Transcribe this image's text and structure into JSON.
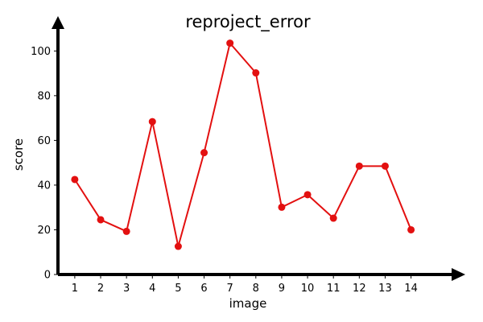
{
  "chart_data": {
    "type": "line",
    "title": "reproject_error",
    "xlabel": "image",
    "ylabel": "score",
    "x": [
      1,
      2,
      3,
      4,
      5,
      6,
      7,
      8,
      9,
      10,
      11,
      12,
      13,
      14
    ],
    "series": [
      {
        "values": [
          42.5,
          24.5,
          19.3,
          68.4,
          12.6,
          54.5,
          103.5,
          90.2,
          30.1,
          35.7,
          25.2,
          48.5,
          48.5,
          20.0
        ],
        "color": "#e31010"
      }
    ],
    "xticks": [
      1,
      2,
      3,
      4,
      5,
      6,
      7,
      8,
      9,
      10,
      11,
      12,
      13,
      14
    ],
    "yticks": [
      0,
      20,
      40,
      60,
      80,
      100
    ],
    "xlim": [
      0.35,
      15.6
    ],
    "ylim": [
      0,
      112
    ],
    "grid": false,
    "legend": "none",
    "axis_color": "#000000"
  }
}
